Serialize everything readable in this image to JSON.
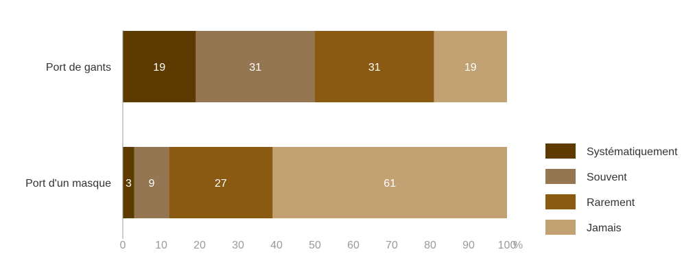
{
  "chart_data": {
    "type": "bar",
    "orientation": "horizontal",
    "stacked": true,
    "title": "",
    "categories": [
      "Port de gants",
      "Port d'un masque"
    ],
    "series": [
      {
        "name": "Systématiquement",
        "values": [
          19,
          3
        ],
        "color": "#5c3a00"
      },
      {
        "name": "Souvent",
        "values": [
          31,
          9
        ],
        "color": "#957652"
      },
      {
        "name": "Rarement",
        "values": [
          31,
          27
        ],
        "color": "#8b5a12"
      },
      {
        "name": "Jamais",
        "values": [
          19,
          61
        ],
        "color": "#c2a172"
      }
    ],
    "x_ticks": [
      "0",
      "10",
      "20",
      "30",
      "40",
      "50",
      "60",
      "70",
      "80",
      "90",
      "100"
    ],
    "x_unit": "%",
    "xlim": [
      0,
      100
    ],
    "grid": false,
    "legend_position": "right"
  }
}
